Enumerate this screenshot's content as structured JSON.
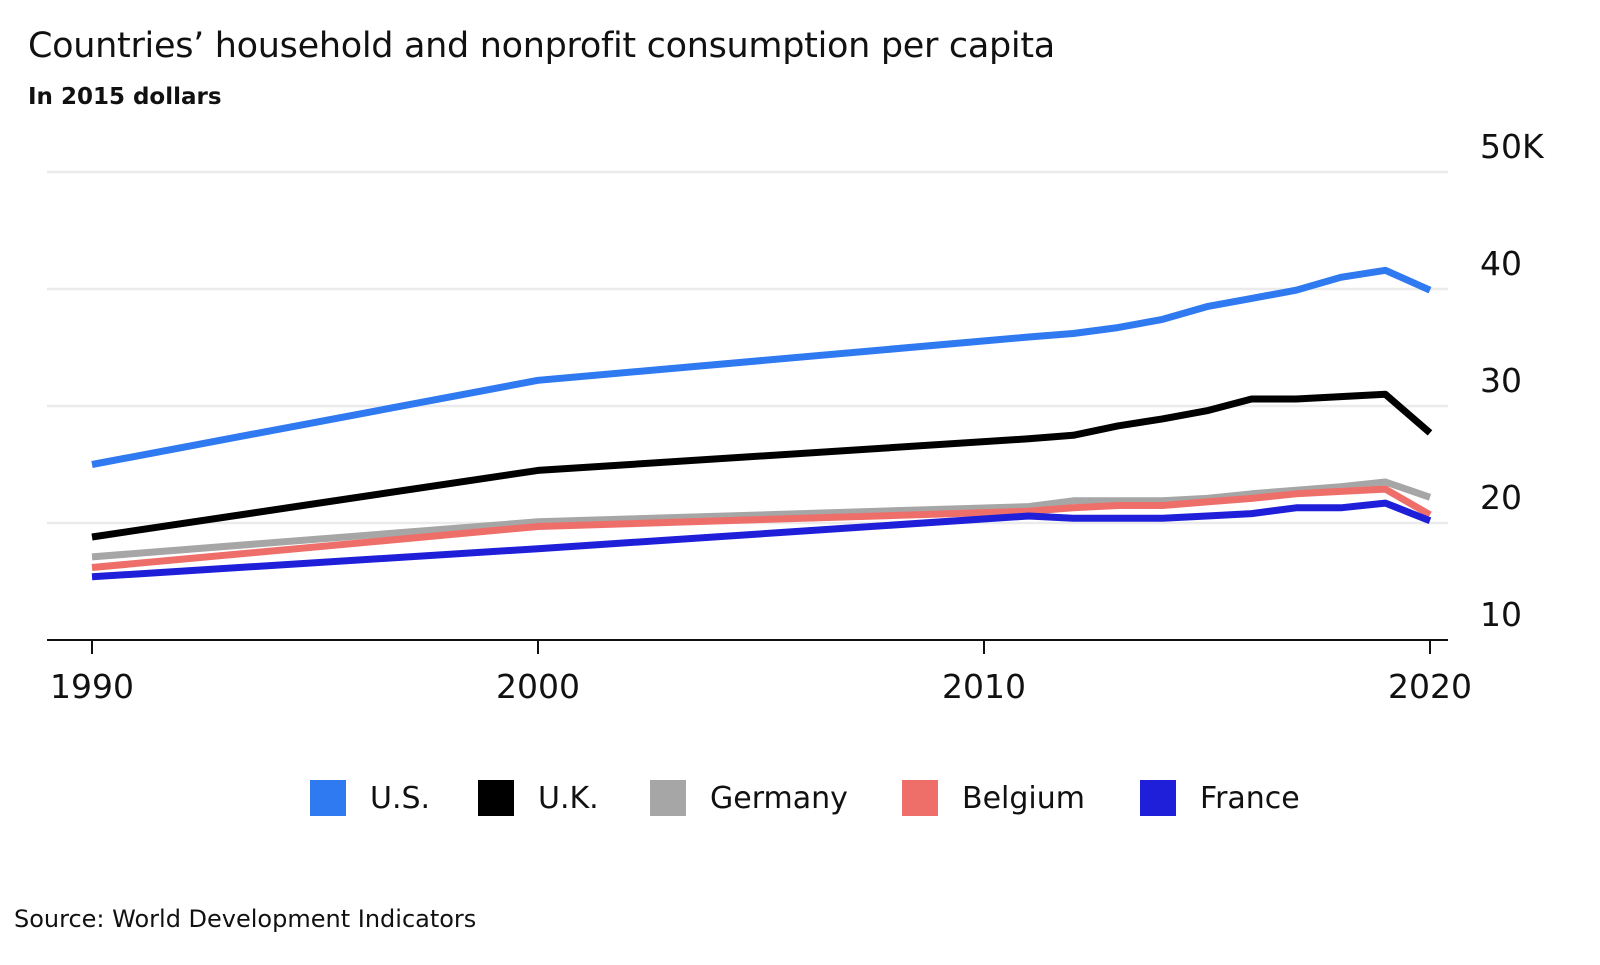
{
  "chart_data": {
    "type": "line",
    "title": "Countries’ household and nonprofit consumption per capita",
    "subtitle": "In 2015 dollars",
    "xlabel": "",
    "ylabel": "",
    "xlim": [
      1990,
      2020
    ],
    "ylim": [
      10,
      50
    ],
    "x_ticks": [
      "1990",
      "2000",
      "2010",
      "2020"
    ],
    "y_ticks": [
      "50K",
      "40",
      "30",
      "20",
      "10"
    ],
    "y_tick_values": [
      50,
      40,
      30,
      20,
      10
    ],
    "grid": "horizontal",
    "legend_position": "bottom",
    "x": [
      1990,
      2000,
      2011,
      2012,
      2013,
      2014,
      2015,
      2016,
      2017,
      2018,
      2019,
      2020
    ],
    "series": [
      {
        "name": "U.S.",
        "color": "#2f7af0",
        "values": [
          25.0,
          32.2,
          35.9,
          36.2,
          36.7,
          37.4,
          38.5,
          39.2,
          39.9,
          41.0,
          41.6,
          39.9
        ]
      },
      {
        "name": "U.K.",
        "color": "#000000",
        "values": [
          18.8,
          24.5,
          27.2,
          27.5,
          28.3,
          28.9,
          29.6,
          30.6,
          30.6,
          30.8,
          31.0,
          27.7
        ]
      },
      {
        "name": "Germany",
        "color": "#a6a6a6",
        "values": [
          17.1,
          20.1,
          21.4,
          21.9,
          21.9,
          21.9,
          22.1,
          22.5,
          22.8,
          23.1,
          23.5,
          22.2
        ]
      },
      {
        "name": "Belgium",
        "color": "#ee6f6a",
        "values": [
          16.2,
          19.7,
          21.0,
          21.3,
          21.5,
          21.5,
          21.8,
          22.1,
          22.5,
          22.7,
          22.9,
          20.7
        ]
      },
      {
        "name": "France",
        "color": "#1f1fd9",
        "values": [
          15.4,
          17.8,
          20.6,
          20.4,
          20.4,
          20.4,
          20.6,
          20.8,
          21.3,
          21.3,
          21.7,
          20.2
        ]
      }
    ]
  },
  "legend": [
    {
      "label": "U.S.",
      "color": "#2f7af0"
    },
    {
      "label": "U.K.",
      "color": "#000000"
    },
    {
      "label": "Germany",
      "color": "#a6a6a6"
    },
    {
      "label": "Belgium",
      "color": "#ee6f6a"
    },
    {
      "label": "France",
      "color": "#1f1fd9"
    }
  ],
  "source": "Source:  World Development Indicators"
}
